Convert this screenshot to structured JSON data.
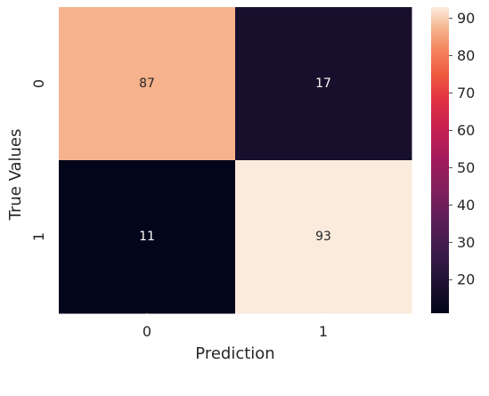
{
  "chart_data": {
    "type": "heatmap",
    "title": "",
    "xlabel": "Prediction",
    "ylabel": "True Values",
    "x_categories": [
      "0",
      "1"
    ],
    "y_categories": [
      "0",
      "1"
    ],
    "values": [
      [
        87,
        17
      ],
      [
        11,
        93
      ]
    ],
    "annotations": true,
    "colormap": "rocket",
    "color_range": [
      11,
      93
    ],
    "colorbar": {
      "ticks": [
        20,
        30,
        40,
        50,
        60,
        70,
        80,
        90
      ],
      "tick_labels": [
        "20",
        "30",
        "40",
        "50",
        "60",
        "70",
        "80",
        "90"
      ],
      "placement": "right"
    },
    "grid": false
  }
}
